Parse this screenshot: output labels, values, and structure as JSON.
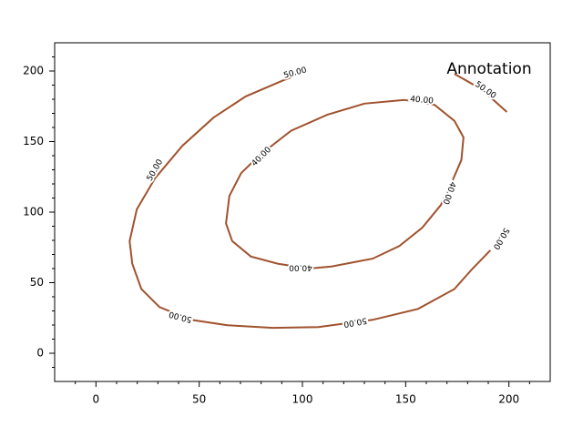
{
  "chart_data": {
    "type": "contour",
    "annotation": "Annotation",
    "xlim": [
      -20,
      220
    ],
    "ylim": [
      -20,
      220
    ],
    "xticks": [
      0,
      50,
      100,
      150,
      200
    ],
    "yticks": [
      0,
      50,
      100,
      150,
      200
    ],
    "xminorticks": [
      -10,
      10,
      20,
      30,
      40,
      60,
      70,
      80,
      90,
      110,
      120,
      130,
      140,
      160,
      170,
      180,
      190,
      210
    ],
    "yminorticks": [
      -10,
      10,
      20,
      30,
      40,
      60,
      70,
      80,
      90,
      110,
      120,
      130,
      140,
      160,
      170,
      180,
      190,
      210
    ],
    "contours": [
      {
        "level": 40,
        "label": "40.00",
        "color": "#a0522d",
        "x": [
          149.5,
          164,
          173.6,
          178,
          177,
          171.4,
          167,
          158,
          147,
          134,
          114,
          103,
          88,
          75,
          66,
          63,
          64.6,
          70.3,
          79,
          94.5,
          112,
          130,
          149.5
        ],
        "y": [
          179.5,
          176,
          164.7,
          153,
          137,
          118,
          105,
          89,
          76,
          67,
          61.5,
          60,
          63.5,
          68.6,
          79.5,
          92,
          111.5,
          127.6,
          140,
          157.7,
          169,
          176.9,
          179.5
        ]
      },
      {
        "level": 50,
        "label": "50.00",
        "color": "#a0522d",
        "x": [
          102.4,
          90,
          72.5,
          57,
          41.8,
          28.6,
          19.8,
          16.3,
          17.6,
          22,
          30.8,
          46,
          63.7,
          85.7,
          107.7,
          134,
          156,
          173.6,
          182.4,
          191,
          null,
          173.6,
          186.8,
          199
        ],
        "y": [
          200,
          193,
          182,
          167,
          147,
          124,
          102,
          79.5,
          63.5,
          45.5,
          32.7,
          23.7,
          19.9,
          18,
          18.6,
          23.7,
          31.4,
          45.5,
          60,
          73,
          null,
          198,
          187,
          171
        ]
      }
    ]
  }
}
